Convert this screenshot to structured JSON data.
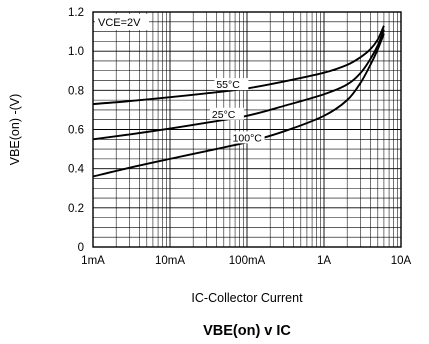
{
  "chart_data": {
    "type": "line",
    "title_main": "VBE(on)",
    "title_sep": " v ",
    "title_tail": "IC",
    "xlabel": "IC-Collector Current",
    "ylabel": "VBE(on) -(V)",
    "annotation": "VCE=2V",
    "x_scale": "log",
    "x_unit": "A",
    "xlim": [
      0.001,
      10
    ],
    "ylim": [
      0,
      1.2
    ],
    "x_ticks": [
      {
        "value": 0.001,
        "label": "1mA"
      },
      {
        "value": 0.01,
        "label": "10mA"
      },
      {
        "value": 0.1,
        "label": "100mA"
      },
      {
        "value": 1,
        "label": "1A"
      },
      {
        "value": 10,
        "label": "10A"
      }
    ],
    "y_ticks": [
      {
        "value": 0,
        "label": "0"
      },
      {
        "value": 0.2,
        "label": "0.2"
      },
      {
        "value": 0.4,
        "label": "0.4"
      },
      {
        "value": 0.6,
        "label": "0.6"
      },
      {
        "value": 0.8,
        "label": "0.8"
      },
      {
        "value": 1.0,
        "label": "1.0"
      },
      {
        "value": 1.2,
        "label": "1.2"
      }
    ],
    "grid": true,
    "series": [
      {
        "name": "55°C",
        "x": [
          0.001,
          0.003,
          0.01,
          0.03,
          0.1,
          0.3,
          1,
          2,
          3,
          4,
          5,
          6
        ],
        "y": [
          0.73,
          0.745,
          0.765,
          0.785,
          0.81,
          0.845,
          0.89,
          0.93,
          0.97,
          1.01,
          1.06,
          1.13
        ]
      },
      {
        "name": "25°C",
        "x": [
          0.001,
          0.003,
          0.01,
          0.03,
          0.1,
          0.3,
          1,
          2,
          3,
          4,
          5,
          6
        ],
        "y": [
          0.55,
          0.575,
          0.605,
          0.635,
          0.67,
          0.72,
          0.78,
          0.83,
          0.89,
          0.96,
          1.03,
          1.11
        ]
      },
      {
        "name": "100°C",
        "x": [
          0.001,
          0.003,
          0.01,
          0.03,
          0.1,
          0.3,
          1,
          2,
          3,
          4,
          5,
          6
        ],
        "y": [
          0.36,
          0.405,
          0.45,
          0.49,
          0.535,
          0.59,
          0.67,
          0.75,
          0.84,
          0.93,
          1.01,
          1.09
        ]
      }
    ]
  }
}
